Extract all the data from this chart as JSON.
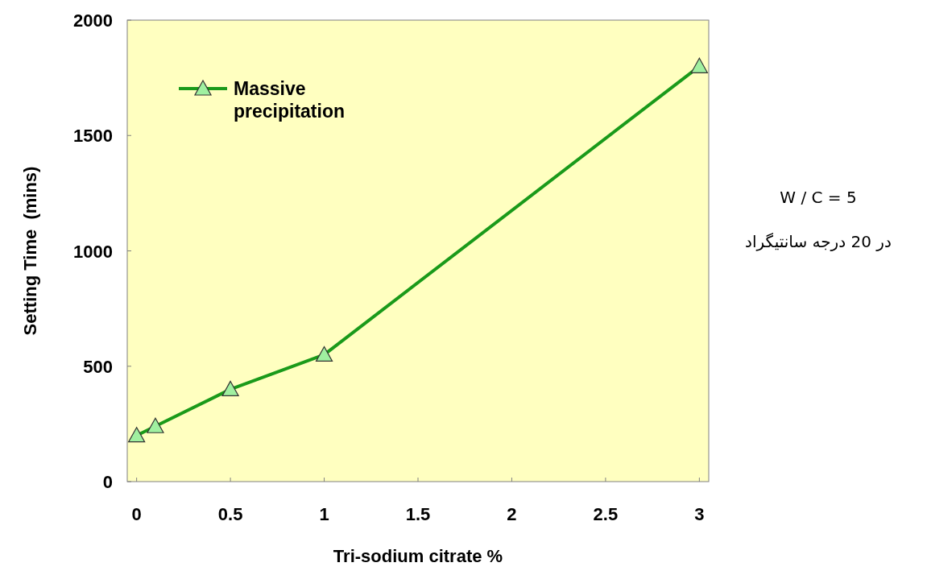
{
  "chart_data": {
    "type": "line",
    "xlabel": "Tri-sodium citrate %",
    "ylabel": "Setting Time  (mins)",
    "x": [
      0,
      0.1,
      0.5,
      1,
      3
    ],
    "series": [
      {
        "name": "Massive precipitation",
        "color": "#1a9a1a",
        "values": [
          200,
          240,
          400,
          550,
          1800
        ]
      }
    ],
    "xlim": [
      -0.05,
      3.05
    ],
    "ylim": [
      0,
      2000
    ],
    "xticks": [
      0,
      0.5,
      1,
      1.5,
      2,
      2.5,
      3
    ],
    "yticks": [
      0,
      500,
      1000,
      1500,
      2000
    ],
    "marker": "triangle",
    "line_style": "solid",
    "legend": "top left",
    "annotations": [
      "W / C = 5",
      "در 20 درجه سانتیگراد"
    ]
  }
}
